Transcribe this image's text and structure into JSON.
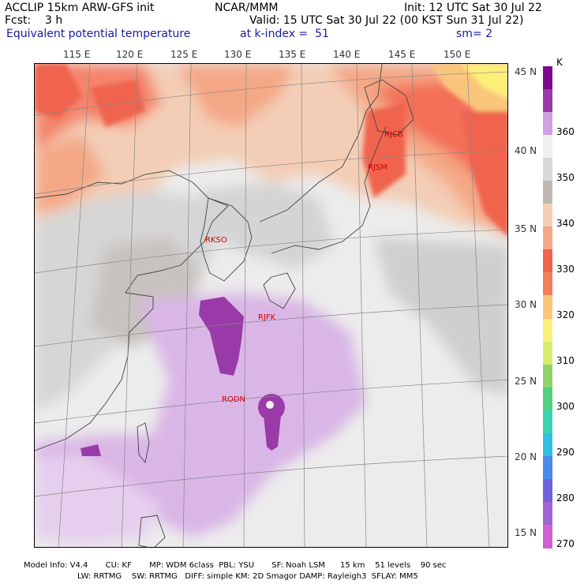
{
  "header": {
    "line1_left": "ACCLIP 15km ARW-GFS init",
    "line1_center": "NCAR/MMM",
    "line1_right": "Init: 12 UTC Sat 30 Jul 22",
    "line2_left": "Fcst:    3 h",
    "line2_right": "Valid: 15 UTC Sat 30 Jul 22 (00 KST Sun 31 Jul 22)",
    "line3_field": "Equivalent potential temperature",
    "line3_kindex": "at k-index =  51",
    "line3_sm": "sm= 2"
  },
  "lon_labels": [
    "115 E",
    "120 E",
    "125 E",
    "130 E",
    "135 E",
    "140 E",
    "145 E",
    "150 E"
  ],
  "lat_labels": [
    "45 N",
    "40 N",
    "35 N",
    "30 N",
    "25 N",
    "20 N",
    "15 N"
  ],
  "stations": [
    "RJCB",
    "RJSM",
    "RKSO",
    "RJFK",
    "RODN"
  ],
  "colorbar": {
    "unit": "K",
    "ticks": [
      "360",
      "350",
      "340",
      "330",
      "320",
      "310",
      "300",
      "290",
      "280",
      "270"
    ],
    "colors": [
      "#7a0a8a",
      "#9a3aa8",
      "#d0a0e0",
      "#f0f0f0",
      "#d8d8d8",
      "#bfb8b2",
      "#f3cdb5",
      "#f4a886",
      "#f0644e",
      "#f47e5c",
      "#f9c67c",
      "#fdf07a",
      "#d8ec6e",
      "#8ed468",
      "#50d080",
      "#3ad4b4",
      "#30c0e0",
      "#4a8ae8",
      "#7060e0",
      "#a064d0",
      "#d060d0"
    ]
  },
  "footer": {
    "line1": "Model Info: V4.4       CU: KF       MP: WDM 6class  PBL: YSU       SF: Noah LSM      15 km    51 levels    90 sec",
    "line2": "LW: RRTMG    SW: RRTMG   DIFF: simple KM: 2D Smagor DAMP: Rayleigh3  SFLAY: MM5"
  }
}
